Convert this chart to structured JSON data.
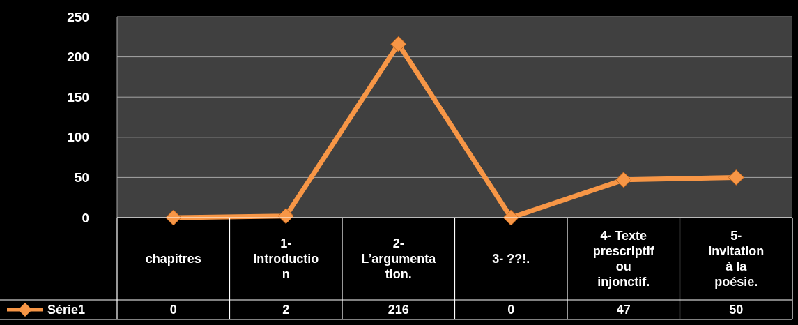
{
  "chart_data": {
    "type": "line",
    "categories": [
      "chapitres",
      "1- Introduction",
      "2- L’argumentation.",
      "3- ??!.",
      "4- Texte prescriptif ou injonctif.",
      "5- Invitation à la poésie."
    ],
    "series": [
      {
        "name": "Série1",
        "color": "#f79646",
        "values": [
          0,
          2,
          216,
          0,
          47,
          50
        ]
      }
    ],
    "ylim": [
      0,
      250
    ],
    "yticks": [
      0,
      50,
      100,
      150,
      200,
      250
    ],
    "grid": "y",
    "marker": "diamond",
    "line_style": "solid",
    "legend": "bottom",
    "data_labels": true
  }
}
